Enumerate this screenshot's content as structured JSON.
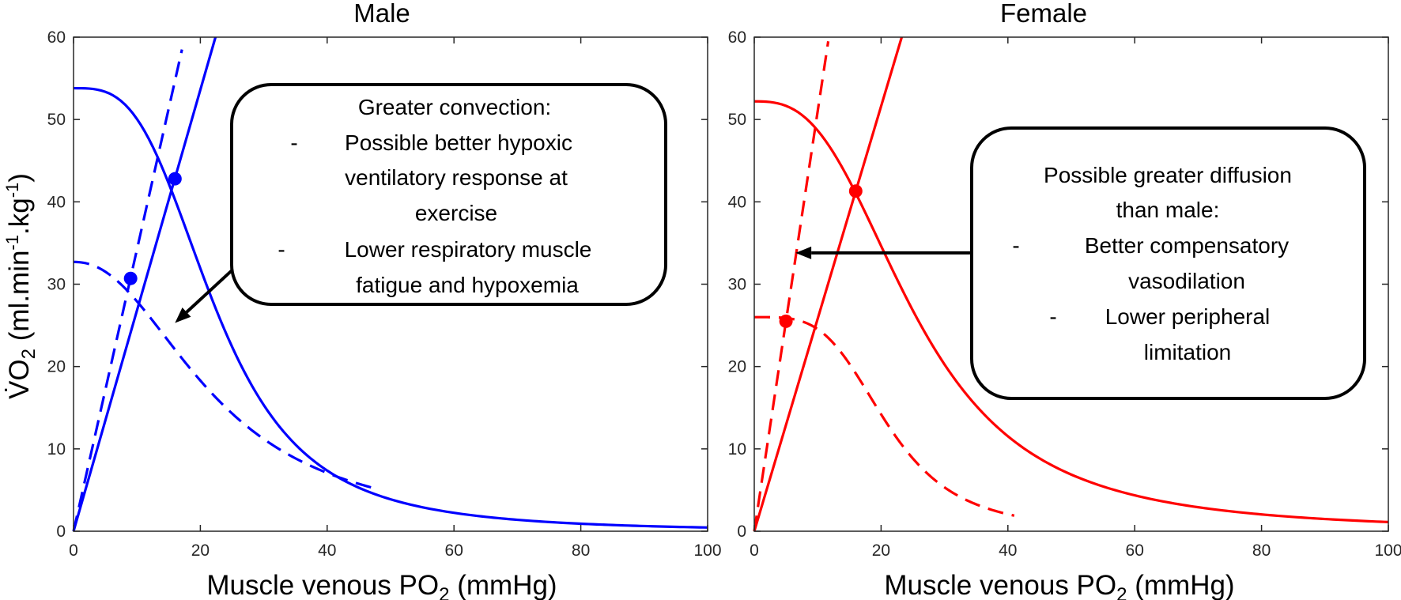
{
  "chart_data": [
    {
      "type": "line",
      "title": "Male",
      "xlabel": "Muscle venous PO",
      "xlabel_sub": "2",
      "xlabel_unit": " (mmHg)",
      "ylabel": "V̇O",
      "ylabel_sub": "2",
      "ylabel_unit_a": " (ml.min",
      "ylabel_sup1": "-1",
      "ylabel_unit_b": ".kg",
      "ylabel_sup2": "-1",
      "ylabel_unit_c": ")",
      "xlim": [
        0,
        100
      ],
      "ylim": [
        0,
        60
      ],
      "xticks": [
        0,
        20,
        40,
        60,
        80,
        100
      ],
      "yticks": [
        0,
        10,
        20,
        30,
        40,
        50,
        60
      ],
      "grid": false,
      "color": "#0000ff",
      "series": [
        {
          "style": "solid",
          "kind": "fick",
          "vmax": 53.8,
          "p50": 22.5,
          "n": 3.2
        },
        {
          "style": "solid",
          "kind": "diffusion",
          "slope": 2.68
        },
        {
          "style": "dashed",
          "kind": "fick",
          "vmax": 32.7,
          "p50": 22.3,
          "n": 2.2,
          "x_end": 48
        },
        {
          "style": "dashed",
          "kind": "diffusion",
          "slope": 3.42,
          "y_end": 58.5
        }
      ],
      "points": [
        {
          "x": 16,
          "y": 42.8
        },
        {
          "x": 9,
          "y": 30.7
        }
      ],
      "annotation": {
        "lines": [
          {
            "dash": "",
            "text": "Greater convection:"
          },
          {
            "dash": "-",
            "text": "Possible better hypoxic"
          },
          {
            "dash": "",
            "text": "ventilatory response at"
          },
          {
            "dash": "",
            "text": "exercise"
          },
          {
            "dash": "-",
            "text": "Lower respiratory muscle"
          },
          {
            "dash": "",
            "text": "fatigue and hypoxemia"
          }
        ],
        "arrow_target": {
          "x": 16,
          "y": 25.3
        }
      }
    },
    {
      "type": "line",
      "title": "Female",
      "xlabel": "Muscle venous PO",
      "xlabel_sub": "2",
      "xlabel_unit": " (mmHg)",
      "xlim": [
        0,
        100
      ],
      "ylim": [
        0,
        60
      ],
      "xticks": [
        0,
        20,
        40,
        60,
        80,
        100
      ],
      "yticks": [
        0,
        10,
        20,
        30,
        40,
        50,
        60
      ],
      "grid": false,
      "color": "#ff0000",
      "series": [
        {
          "style": "solid",
          "kind": "fick",
          "vmax": 52.2,
          "p50": 25.5,
          "n": 2.8
        },
        {
          "style": "solid",
          "kind": "diffusion",
          "slope": 2.58
        },
        {
          "style": "dashed",
          "kind": "fick",
          "vmax": 26.0,
          "p50": 21.0,
          "n": 3.8,
          "x_end": 41
        },
        {
          "style": "dashed",
          "kind": "diffusion",
          "slope": 5.1,
          "y_end": 59.5
        }
      ],
      "points": [
        {
          "x": 16,
          "y": 41.3
        },
        {
          "x": 5,
          "y": 25.5
        }
      ],
      "annotation": {
        "lines": [
          {
            "dash": "",
            "text": "Possible greater diffusion"
          },
          {
            "dash": "",
            "text": "than male:"
          },
          {
            "dash": "-",
            "text": "Better compensatory"
          },
          {
            "dash": "",
            "text": "vasodilation"
          },
          {
            "dash": "-",
            "text": "Lower peripheral"
          },
          {
            "dash": "",
            "text": "limitation"
          }
        ],
        "arrow_target": {
          "x": 6.5,
          "y": 33.8
        }
      }
    }
  ]
}
